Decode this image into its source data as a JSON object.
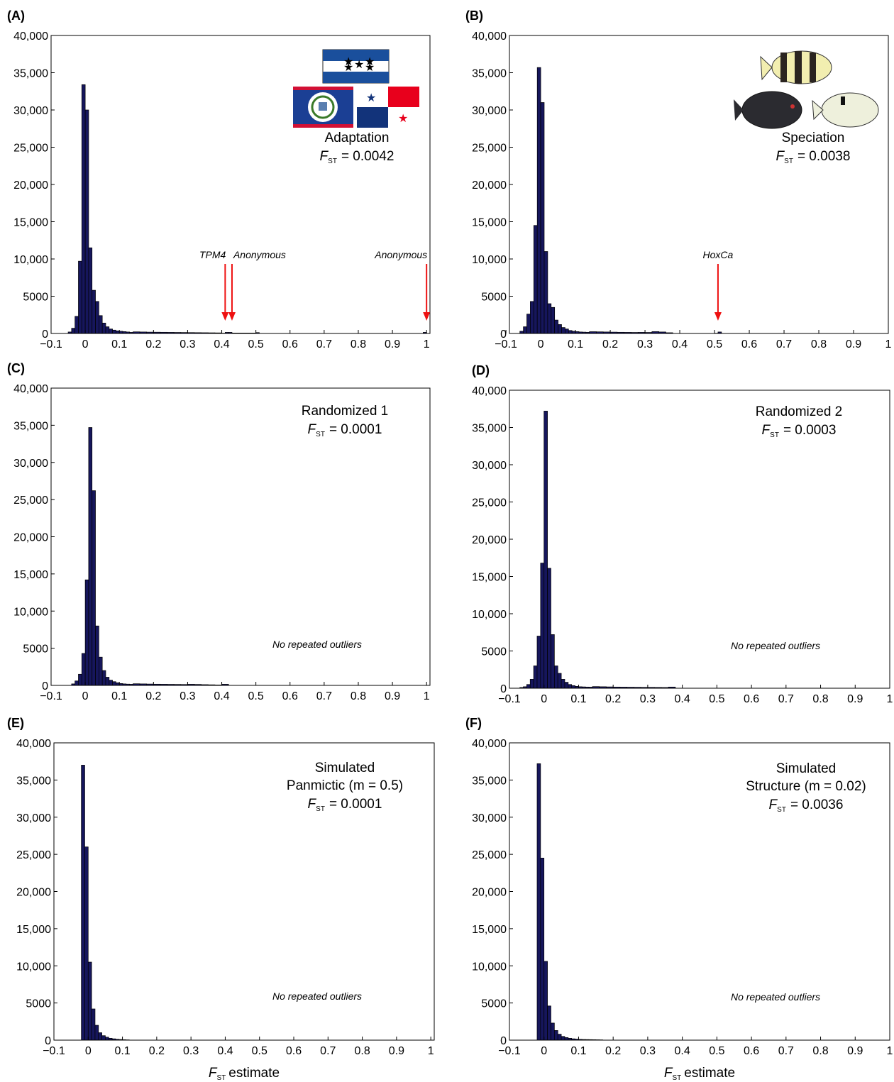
{
  "chart_data": [
    {
      "type": "histogram",
      "panel": "(A)",
      "color": "#16165c",
      "annotation": [
        "Adaptation"
      ],
      "stat": {
        "symbol": "F",
        "subscript": "ST",
        "value": "= 0.0042"
      },
      "bins": [
        -0.05,
        -0.04,
        -0.03,
        -0.02,
        -0.01,
        0,
        0.01,
        0.02,
        0.03,
        0.04,
        0.05,
        0.06,
        0.07,
        0.08,
        0.09,
        0.1,
        0.11,
        0.12,
        0.13,
        0.14,
        0.16,
        0.18,
        0.2,
        0.22,
        0.24,
        0.26,
        0.28,
        0.3,
        0.32,
        0.34,
        0.36,
        0.38,
        0.4,
        0.41,
        0.42,
        0.43,
        0.5,
        0.51,
        0.99,
        1.0
      ],
      "values": [
        200,
        700,
        2300,
        9700,
        33400,
        30000,
        11500,
        5800,
        4300,
        2400,
        1400,
        900,
        600,
        450,
        350,
        300,
        250,
        200,
        150,
        220,
        200,
        180,
        170,
        160,
        150,
        140,
        130,
        120,
        110,
        100,
        90,
        80,
        40,
        150,
        150,
        60,
        120,
        0,
        150
      ],
      "arrows": [
        {
          "x": 0.41,
          "label": "TPM4"
        },
        {
          "x": 0.43,
          "label": "Anonymous"
        },
        {
          "x": 1.0,
          "label": "Anonymous"
        }
      ],
      "xlim": [
        -0.1,
        1.01
      ],
      "ylim": [
        0,
        40000
      ],
      "xticks": [
        {
          "value": -0.1,
          "label": "−0.1"
        },
        0,
        0.1,
        0.2,
        0.3,
        0.4,
        0.5,
        0.6,
        0.7,
        0.8,
        0.9,
        1
      ],
      "yticks": [
        0,
        5000,
        {
          "value": 10000,
          "label": "10,000"
        },
        {
          "value": 15000,
          "label": "15,000"
        },
        {
          "value": 20000,
          "label": "20,000"
        },
        {
          "value": 25000,
          "label": "25,000"
        },
        {
          "value": 30000,
          "label": "30,000"
        },
        {
          "value": 35000,
          "label": "35,000"
        },
        {
          "value": 40000,
          "label": "40,000"
        }
      ]
    },
    {
      "type": "histogram",
      "panel": "(B)",
      "color": "#16165c",
      "annotation": [
        "Speciation"
      ],
      "stat": {
        "symbol": "F",
        "subscript": "ST",
        "value": "= 0.0038"
      },
      "bins": [
        -0.06,
        -0.05,
        -0.04,
        -0.03,
        -0.02,
        -0.01,
        0,
        0.01,
        0.02,
        0.03,
        0.04,
        0.05,
        0.06,
        0.07,
        0.08,
        0.09,
        0.1,
        0.11,
        0.12,
        0.13,
        0.14,
        0.16,
        0.18,
        0.2,
        0.22,
        0.24,
        0.26,
        0.28,
        0.3,
        0.32,
        0.34,
        0.36,
        0.38,
        0.5,
        0.51,
        0.52
      ],
      "values": [
        300,
        900,
        2600,
        4300,
        14500,
        35700,
        31000,
        11000,
        4000,
        3500,
        1800,
        1200,
        800,
        600,
        400,
        300,
        250,
        200,
        180,
        160,
        240,
        220,
        200,
        180,
        160,
        150,
        140,
        150,
        140,
        250,
        200,
        100,
        0,
        30,
        200
      ],
      "arrows": [
        {
          "x": 0.51,
          "label": "HoxCa"
        }
      ],
      "xlim": [
        -0.09,
        1.0
      ],
      "ylim": [
        0,
        40000
      ],
      "xticks": [
        {
          "value": -0.1,
          "label": "−0.1"
        },
        0,
        0.1,
        0.2,
        0.3,
        0.4,
        0.5,
        0.6,
        0.7,
        0.8,
        0.9,
        1
      ],
      "yticks": [
        0,
        5000,
        {
          "value": 10000,
          "label": "10,000"
        },
        {
          "value": 15000,
          "label": "15,000"
        },
        {
          "value": 20000,
          "label": "20,000"
        },
        {
          "value": 25000,
          "label": "25,000"
        },
        {
          "value": 30000,
          "label": "30,000"
        },
        {
          "value": 35000,
          "label": "35,000"
        },
        {
          "value": 40000,
          "label": "40,000"
        }
      ]
    },
    {
      "type": "histogram",
      "panel": "(C)",
      "color": "#16165c",
      "annotation": [
        "Randomized 1"
      ],
      "stat": {
        "symbol": "F",
        "subscript": "ST",
        "value": "= 0.0001"
      },
      "note": "No repeated outliers",
      "bins": [
        -0.04,
        -0.03,
        -0.02,
        -0.01,
        0,
        0.01,
        0.02,
        0.03,
        0.04,
        0.05,
        0.06,
        0.07,
        0.08,
        0.09,
        0.1,
        0.11,
        0.12,
        0.13,
        0.14,
        0.16,
        0.18,
        0.2,
        0.22,
        0.24,
        0.26,
        0.28,
        0.3,
        0.32,
        0.34,
        0.36,
        0.38,
        0.4,
        0.42
      ],
      "values": [
        200,
        600,
        1500,
        4300,
        14200,
        34700,
        26200,
        8000,
        3800,
        2000,
        1100,
        700,
        500,
        350,
        250,
        200,
        170,
        150,
        220,
        200,
        180,
        160,
        150,
        140,
        130,
        120,
        150,
        130,
        100,
        80,
        60,
        150
      ],
      "xlim": [
        -0.1,
        1.01
      ],
      "ylim": [
        0,
        40000
      ],
      "xticks": [
        {
          "value": -0.1,
          "label": "−0.1"
        },
        0,
        0.1,
        0.2,
        0.3,
        0.4,
        0.5,
        0.6,
        0.7,
        0.8,
        0.9,
        1
      ],
      "yticks": [
        0,
        5000,
        {
          "value": 10000,
          "label": "10,000"
        },
        {
          "value": 15000,
          "label": "15,000"
        },
        {
          "value": 20000,
          "label": "20,000"
        },
        {
          "value": 25000,
          "label": "25,000"
        },
        {
          "value": 30000,
          "label": "30,000"
        },
        {
          "value": 35000,
          "label": "35,000"
        },
        {
          "value": 40000,
          "label": "40,000"
        }
      ]
    },
    {
      "type": "histogram",
      "panel": "(D)",
      "color": "#16165c",
      "annotation": [
        "Randomized 2"
      ],
      "stat": {
        "symbol": "F",
        "subscript": "ST",
        "value": "= 0.0003"
      },
      "note": "No repeated outliers",
      "bins": [
        -0.07,
        -0.06,
        -0.05,
        -0.04,
        -0.03,
        -0.02,
        -0.01,
        0,
        0.01,
        0.02,
        0.03,
        0.04,
        0.05,
        0.06,
        0.07,
        0.08,
        0.09,
        0.1,
        0.11,
        0.12,
        0.13,
        0.14,
        0.16,
        0.18,
        0.2,
        0.22,
        0.24,
        0.26,
        0.28,
        0.3,
        0.32,
        0.34,
        0.36,
        0.38
      ],
      "values": [
        100,
        200,
        500,
        1200,
        3000,
        7000,
        16800,
        37200,
        16100,
        7200,
        3000,
        2000,
        1200,
        800,
        500,
        350,
        250,
        200,
        180,
        160,
        150,
        220,
        200,
        180,
        160,
        150,
        140,
        130,
        120,
        120,
        110,
        100,
        160
      ],
      "xlim": [
        -0.1,
        1.0
      ],
      "ylim": [
        0,
        40000
      ],
      "xticks": [
        {
          "value": -0.1,
          "label": "−0.1"
        },
        0,
        0.1,
        0.2,
        0.3,
        0.4,
        0.5,
        0.6,
        0.7,
        0.8,
        0.9,
        1
      ],
      "yticks": [
        0,
        5000,
        {
          "value": 10000,
          "label": "10,000"
        },
        {
          "value": 15000,
          "label": "15,000"
        },
        {
          "value": 20000,
          "label": "20,000"
        },
        {
          "value": 25000,
          "label": "25,000"
        },
        {
          "value": 30000,
          "label": "30,000"
        },
        {
          "value": 35000,
          "label": "35,000"
        },
        {
          "value": 40000,
          "label": "40,000"
        }
      ]
    },
    {
      "type": "histogram",
      "panel": "(E)",
      "color": "#16165c",
      "annotation": [
        "Simulated",
        "Panmictic (m = 0.5)"
      ],
      "stat": {
        "symbol": "F",
        "subscript": "ST",
        "value": "= 0.0001"
      },
      "note": "No repeated outliers",
      "xlabel": {
        "symbol": "F",
        "subscript": "ST",
        "text": "estimate"
      },
      "bins": [
        -0.02,
        -0.01,
        0,
        0.01,
        0.02,
        0.03,
        0.04,
        0.05,
        0.06,
        0.07,
        0.08,
        0.09,
        0.1,
        0.11,
        0.12
      ],
      "values": [
        37000,
        26000,
        10500,
        4200,
        2000,
        1000,
        600,
        400,
        250,
        180,
        120,
        90,
        60,
        40
      ],
      "xlim": [
        -0.1,
        1.01
      ],
      "ylim": [
        0,
        40000
      ],
      "xticks": [
        {
          "value": -0.1,
          "label": "−0.1"
        },
        0,
        0.1,
        0.2,
        0.3,
        0.4,
        0.5,
        0.6,
        0.7,
        0.8,
        0.9,
        1
      ],
      "yticks": [
        0,
        5000,
        {
          "value": 10000,
          "label": "10,000"
        },
        {
          "value": 15000,
          "label": "15,000"
        },
        {
          "value": 20000,
          "label": "20,000"
        },
        {
          "value": 25000,
          "label": "25,000"
        },
        {
          "value": 30000,
          "label": "30,000"
        },
        {
          "value": 35000,
          "label": "35,000"
        },
        {
          "value": 40000,
          "label": "40,000"
        }
      ]
    },
    {
      "type": "histogram",
      "panel": "(F)",
      "color": "#16165c",
      "annotation": [
        "Simulated",
        "Structure (m = 0.02)"
      ],
      "stat": {
        "symbol": "F",
        "subscript": "ST",
        "value": "= 0.0036"
      },
      "note": "No repeated outliers",
      "xlabel": {
        "symbol": "F",
        "subscript": "ST",
        "text": "estimate"
      },
      "bins": [
        -0.02,
        -0.01,
        0,
        0.01,
        0.02,
        0.03,
        0.04,
        0.05,
        0.06,
        0.07,
        0.08,
        0.09,
        0.1,
        0.11,
        0.12,
        0.13,
        0.14,
        0.15,
        0.16,
        0.17
      ],
      "values": [
        37200,
        24500,
        10600,
        4600,
        2300,
        1300,
        800,
        500,
        350,
        250,
        180,
        140,
        110,
        90,
        80,
        70,
        60,
        50,
        40
      ],
      "xlim": [
        -0.1,
        1.0
      ],
      "ylim": [
        0,
        40000
      ],
      "xticks": [
        {
          "value": -0.1,
          "label": "−0.1"
        },
        0,
        0.1,
        0.2,
        0.3,
        0.4,
        0.5,
        0.6,
        0.7,
        0.8,
        0.9,
        1
      ],
      "yticks": [
        0,
        5000,
        {
          "value": 10000,
          "label": "10,000"
        },
        {
          "value": 15000,
          "label": "15,000"
        },
        {
          "value": 20000,
          "label": "20,000"
        },
        {
          "value": 25000,
          "label": "25,000"
        },
        {
          "value": 30000,
          "label": "30,000"
        },
        {
          "value": 35000,
          "label": "35,000"
        },
        {
          "value": 40000,
          "label": "40,000"
        }
      ]
    }
  ]
}
